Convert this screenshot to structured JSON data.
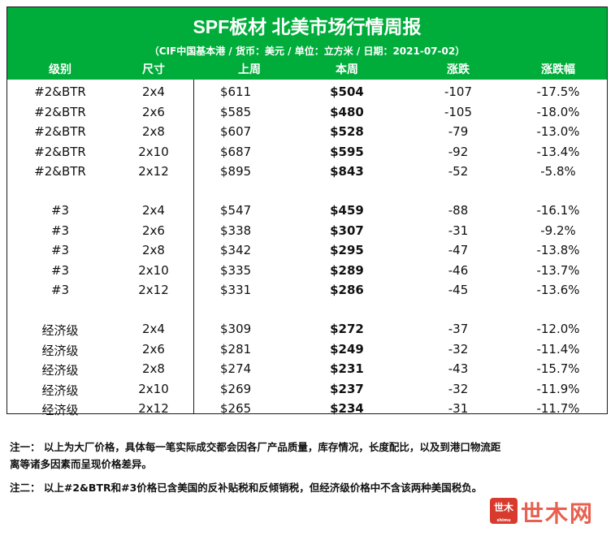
{
  "header": {
    "title": "SPF板材 北美市场行情周报",
    "subtitle": "（CIF中国基本港 / 货币：美元 / 单位：立方米 / 日期：2021-07-02）",
    "columns": [
      "级别",
      "尺寸",
      "上周",
      "本周",
      "涨跌",
      "涨跌幅"
    ]
  },
  "rows": [
    {
      "grade": "#2&BTR",
      "size": "2x4",
      "last": "$611",
      "this": "$504",
      "change": "-107",
      "pct": "-17.5%"
    },
    {
      "grade": "#2&BTR",
      "size": "2x6",
      "last": "$585",
      "this": "$480",
      "change": "-105",
      "pct": "-18.0%"
    },
    {
      "grade": "#2&BTR",
      "size": "2x8",
      "last": "$607",
      "this": "$528",
      "change": "-79",
      "pct": "-13.0%"
    },
    {
      "grade": "#2&BTR",
      "size": "2x10",
      "last": "$687",
      "this": "$595",
      "change": "-92",
      "pct": "-13.4%"
    },
    {
      "grade": "#2&BTR",
      "size": "2x12",
      "last": "$895",
      "this": "$843",
      "change": "-52",
      "pct": "-5.8%"
    },
    {
      "grade": "#3",
      "size": "2x4",
      "last": "$547",
      "this": "$459",
      "change": "-88",
      "pct": "-16.1%"
    },
    {
      "grade": "#3",
      "size": "2x6",
      "last": "$338",
      "this": "$307",
      "change": "-31",
      "pct": "-9.2%"
    },
    {
      "grade": "#3",
      "size": "2x8",
      "last": "$342",
      "this": "$295",
      "change": "-47",
      "pct": "-13.8%"
    },
    {
      "grade": "#3",
      "size": "2x10",
      "last": "$335",
      "this": "$289",
      "change": "-46",
      "pct": "-13.7%"
    },
    {
      "grade": "#3",
      "size": "2x12",
      "last": "$331",
      "this": "$286",
      "change": "-45",
      "pct": "-13.6%"
    },
    {
      "grade": "经济级",
      "size": "2x4",
      "last": "$309",
      "this": "$272",
      "change": "-37",
      "pct": "-12.0%"
    },
    {
      "grade": "经济级",
      "size": "2x6",
      "last": "$281",
      "this": "$249",
      "change": "-32",
      "pct": "-11.4%"
    },
    {
      "grade": "经济级",
      "size": "2x8",
      "last": "$274",
      "this": "$231",
      "change": "-43",
      "pct": "-15.7%"
    },
    {
      "grade": "经济级",
      "size": "2x10",
      "last": "$269",
      "this": "$237",
      "change": "-32",
      "pct": "-11.9%"
    },
    {
      "grade": "经济级",
      "size": "2x12",
      "last": "$265",
      "this": "$234",
      "change": "-31",
      "pct": "-11.7%"
    }
  ],
  "notes": {
    "note1_line1": "注一： 以上为大厂价格，具体每一笔实际成交都会因各厂产品质量，库存情况，长度配比，以及到港口物流距",
    "note1_line2": "离等诸多因素而呈现价格差异。",
    "note2": "注二： 以上#2&BTR和#3价格已含美国的反补贴税和反倾销税，但经济级价格中不含该两种美国税负。"
  },
  "logo": {
    "badge": "世木",
    "badge_small": "shimu",
    "text": "世木网"
  }
}
